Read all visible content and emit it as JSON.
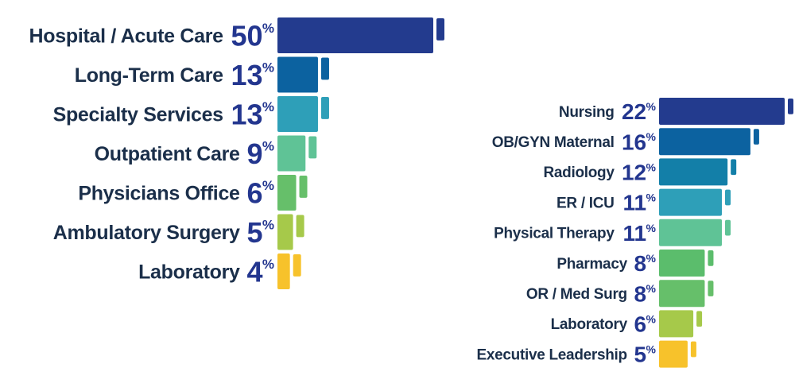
{
  "chart_data": [
    {
      "type": "bar",
      "orientation": "horizontal",
      "categories": [
        "Hospital / Acute Care",
        "Long-Term Care",
        "Specialty Services",
        "Outpatient Care",
        "Physicians Office",
        "Ambulatory Surgery",
        "Laboratory"
      ],
      "values": [
        50,
        13,
        13,
        9,
        6,
        5,
        4
      ],
      "value_labels": [
        "50",
        "13",
        "13",
        "9",
        "6",
        "5",
        "4"
      ],
      "unit": "%",
      "colors": [
        "#233b8e",
        "#0c62a0",
        "#2e9fb8",
        "#5fc396",
        "#66bf6a",
        "#a6c94a",
        "#f7c22b"
      ],
      "title": "",
      "xlabel": "",
      "ylabel": "",
      "grid": false,
      "legend": "none"
    },
    {
      "type": "bar",
      "orientation": "horizontal",
      "categories": [
        "Nursing",
        "OB/GYN Maternal",
        "Radiology",
        "ER / ICU",
        "Physical Therapy",
        "Pharmacy",
        "OR / Med Surg",
        "Laboratory",
        "Executive Leadership"
      ],
      "values": [
        22,
        16,
        12,
        11,
        11,
        8,
        8,
        6,
        5
      ],
      "value_labels": [
        "22",
        "16",
        "12",
        "11",
        "11",
        "8",
        "8",
        "6",
        "5"
      ],
      "unit": "%",
      "colors": [
        "#233b8e",
        "#0c62a0",
        "#137fa8",
        "#2e9fb8",
        "#5fc396",
        "#5bbd6c",
        "#66bf6a",
        "#a6c94a",
        "#f7c22b"
      ],
      "title": "",
      "xlabel": "",
      "ylabel": "",
      "grid": false,
      "legend": "none"
    }
  ]
}
